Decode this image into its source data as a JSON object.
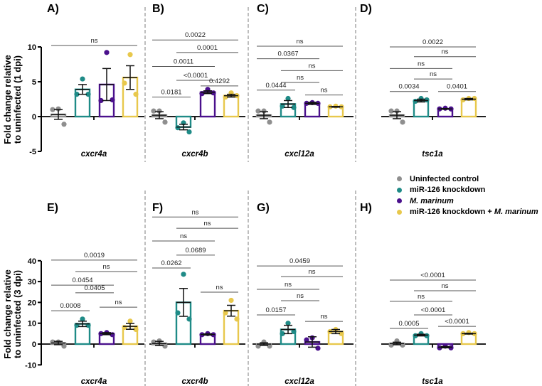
{
  "colors": {
    "uninfected": "#8f8f8f",
    "knockdown": "#1f8b87",
    "marinum": "#4a108c",
    "combo": "#e8c84c"
  },
  "legend": {
    "items": [
      {
        "label": "Uninfected control"
      },
      {
        "label": "miR-126 knockdown"
      },
      {
        "label": "M. marinum"
      },
      {
        "label_plain": "miR-126 knockdown + ",
        "label_italic": "M. marinum"
      }
    ]
  },
  "ylabels": {
    "top": [
      "Fold change relative",
      "to uninfected (1 dpi)"
    ],
    "bottom": [
      "Fold change relative",
      "to uninfected (3 dpi)"
    ]
  },
  "chart_data": [
    {
      "panel": "A)",
      "type": "bar",
      "gene": "cxcr4a",
      "row": "1 dpi",
      "yticks": [
        10,
        5,
        0,
        -5
      ],
      "ylim": [
        -5,
        10
      ],
      "groups": [
        {
          "mean": 0.3,
          "sem": 0.7,
          "points": [
            1.1,
            1.0,
            -1.1
          ]
        },
        {
          "mean": 3.9,
          "sem": 0.7,
          "points": [
            5.4,
            3.2,
            3.2
          ]
        },
        {
          "mean": 4.6,
          "sem": 2.3,
          "points": [
            9.2,
            2.3,
            2.4
          ]
        },
        {
          "mean": 5.6,
          "sem": 1.7,
          "points": [
            8.9,
            4.8,
            3.2
          ]
        }
      ],
      "brackets": [
        {
          "from": 0,
          "to": 3,
          "y": 10.2,
          "label": "ns"
        }
      ]
    },
    {
      "panel": "B)",
      "type": "bar",
      "gene": "cxcr4b",
      "row": "1 dpi",
      "ylim": [
        -5,
        10
      ],
      "groups": [
        {
          "mean": 0.2,
          "sem": 0.5,
          "points": [
            0.8,
            0.8,
            -0.8
          ]
        },
        {
          "mean": -1.5,
          "sem": 0.4,
          "points": [
            -0.9,
            -1.6,
            -2.2
          ]
        },
        {
          "mean": 3.5,
          "sem": 0.2,
          "points": [
            3.9,
            3.3,
            3.4
          ]
        },
        {
          "mean": 3.0,
          "sem": 0.2,
          "points": [
            3.4,
            2.8,
            3.0
          ]
        }
      ],
      "brackets": [
        {
          "from": 0,
          "to": 3,
          "y": 11.0,
          "label": "0.0022"
        },
        {
          "from": 1,
          "to": 3,
          "y": 9.2,
          "label": "0.0001"
        },
        {
          "from": 0,
          "to": 2,
          "y": 7.2,
          "label": "0.0011"
        },
        {
          "from": 1,
          "to": 2,
          "y": 5.2,
          "label": "<0.0001"
        },
        {
          "from": 2,
          "to": 3,
          "y": 4.4,
          "label": "0.4292"
        },
        {
          "from": 0,
          "to": 1,
          "y": 2.8,
          "label": "0.0181"
        }
      ]
    },
    {
      "panel": "C)",
      "type": "bar",
      "gene": "cxcl12a",
      "row": "1 dpi",
      "ylim": [
        -5,
        10
      ],
      "groups": [
        {
          "mean": 0.2,
          "sem": 0.5,
          "points": [
            0.8,
            0.8,
            -0.8
          ]
        },
        {
          "mean": 1.8,
          "sem": 0.5,
          "points": [
            2.6,
            1.5,
            1.3
          ]
        },
        {
          "mean": 1.9,
          "sem": 0.15,
          "points": [
            2.0,
            1.9,
            1.9
          ]
        },
        {
          "mean": 1.4,
          "sem": 0.05,
          "points": [
            1.5,
            1.4,
            1.4
          ]
        }
      ],
      "brackets": [
        {
          "from": 0,
          "to": 3,
          "y": 10.1,
          "label": "ns"
        },
        {
          "from": 0,
          "to": 2,
          "y": 8.3,
          "label": "0.0367"
        },
        {
          "from": 1,
          "to": 3,
          "y": 6.6,
          "label": "ns"
        },
        {
          "from": 1,
          "to": 2,
          "y": 4.9,
          "label": "ns"
        },
        {
          "from": 0,
          "to": 1,
          "y": 3.8,
          "label": "0.0444"
        },
        {
          "from": 2,
          "to": 3,
          "y": 3.1,
          "label": "ns"
        }
      ]
    },
    {
      "panel": "D)",
      "type": "bar",
      "gene": "tsc1a",
      "row": "1 dpi",
      "ylim": [
        -5,
        10
      ],
      "groups": [
        {
          "mean": 0.2,
          "sem": 0.5,
          "points": [
            0.8,
            0.8,
            -0.8
          ]
        },
        {
          "mean": 2.3,
          "sem": 0.2,
          "points": [
            2.6,
            2.2,
            2.4
          ]
        },
        {
          "mean": 1.1,
          "sem": 0.05,
          "points": [
            1.2,
            1.1,
            1.1
          ]
        },
        {
          "mean": 2.5,
          "sem": 0.1,
          "points": [
            2.6,
            2.4,
            2.6
          ]
        }
      ],
      "brackets": [
        {
          "from": 0,
          "to": 3,
          "y": 10.0,
          "label": "0.0022"
        },
        {
          "from": 1,
          "to": 3,
          "y": 8.6,
          "label": "ns"
        },
        {
          "from": 0,
          "to": 2,
          "y": 6.9,
          "label": "ns"
        },
        {
          "from": 1,
          "to": 2,
          "y": 5.4,
          "label": "ns"
        },
        {
          "from": 0,
          "to": 1,
          "y": 3.6,
          "label": "0.0034"
        },
        {
          "from": 2,
          "to": 3,
          "y": 3.6,
          "label": "0.0401"
        }
      ]
    },
    {
      "panel": "E)",
      "type": "bar",
      "gene": "cxcr4a",
      "row": "3 dpi",
      "yticks": [
        40,
        30,
        20,
        10,
        0,
        -10
      ],
      "ylim": [
        -10,
        40
      ],
      "groups": [
        {
          "mean": 0.5,
          "sem": 0.8,
          "points": [
            1.0,
            1.0,
            -1.0
          ]
        },
        {
          "mean": 9.7,
          "sem": 1.3,
          "points": [
            12,
            9,
            9
          ]
        },
        {
          "mean": 5.0,
          "sem": 0.5,
          "points": [
            5.5,
            5,
            4.5
          ]
        },
        {
          "mean": 8.5,
          "sem": 1.4,
          "points": [
            11,
            8,
            7
          ]
        }
      ],
      "brackets": [
        {
          "from": 0,
          "to": 3,
          "y": 40.3,
          "label": "0.0019"
        },
        {
          "from": 1,
          "to": 3,
          "y": 34.8,
          "label": "ns"
        },
        {
          "from": 0,
          "to": 2,
          "y": 28.3,
          "label": "0.0454"
        },
        {
          "from": 1,
          "to": 2,
          "y": 24.6,
          "label": "0.0405"
        },
        {
          "from": 2,
          "to": 3,
          "y": 17.7,
          "label": "ns"
        },
        {
          "from": 0,
          "to": 1,
          "y": 16.0,
          "label": "0.0008"
        }
      ]
    },
    {
      "panel": "F)",
      "type": "bar",
      "gene": "cxcr4b",
      "row": "3 dpi",
      "ylim": [
        -10,
        40
      ],
      "groups": [
        {
          "mean": 0.3,
          "sem": 1.0,
          "points": [
            1.5,
            1.0,
            -1.0
          ]
        },
        {
          "mean": 20.0,
          "sem": 6.7,
          "points": [
            33.5,
            15,
            12
          ]
        },
        {
          "mean": 4.6,
          "sem": 0.3,
          "points": [
            5,
            4.5,
            4.5
          ]
        },
        {
          "mean": 16.0,
          "sem": 2.6,
          "points": [
            21,
            15,
            12
          ]
        }
      ],
      "brackets": [
        {
          "from": 0,
          "to": 3,
          "y": 61.0,
          "label": "ns"
        },
        {
          "from": 1,
          "to": 3,
          "y": 55.6,
          "label": "ns"
        },
        {
          "from": 0,
          "to": 2,
          "y": 49.5,
          "label": "ns"
        },
        {
          "from": 1,
          "to": 2,
          "y": 42.7,
          "label": "0.0689"
        },
        {
          "from": 0,
          "to": 1,
          "y": 36.5,
          "label": "0.0262"
        },
        {
          "from": 2,
          "to": 3,
          "y": 24.9,
          "label": "ns"
        }
      ]
    },
    {
      "panel": "G)",
      "type": "bar",
      "gene": "cxcl12a",
      "row": "3 dpi",
      "ylim": [
        -10,
        40
      ],
      "groups": [
        {
          "mean": 0.0,
          "sem": 0.6,
          "points": [
            1.0,
            -1.0,
            -1.0
          ]
        },
        {
          "mean": 7.0,
          "sem": 2.0,
          "points": [
            10,
            5,
            6
          ]
        },
        {
          "mean": 1.0,
          "sem": 2.5,
          "points": [
            3,
            2,
            -2
          ]
        },
        {
          "mean": 6.0,
          "sem": 1.0,
          "points": [
            7,
            6,
            5
          ]
        }
      ],
      "brackets": [
        {
          "from": 0,
          "to": 3,
          "y": 37.5,
          "label": "0.0459"
        },
        {
          "from": 1,
          "to": 3,
          "y": 32.4,
          "label": "ns"
        },
        {
          "from": 0,
          "to": 2,
          "y": 26.3,
          "label": "ns"
        },
        {
          "from": 1,
          "to": 2,
          "y": 20.8,
          "label": "ns"
        },
        {
          "from": 0,
          "to": 1,
          "y": 14.0,
          "label": "0.0157"
        },
        {
          "from": 2,
          "to": 3,
          "y": 10.9,
          "label": "ns"
        }
      ]
    },
    {
      "panel": "H)",
      "type": "bar",
      "gene": "tsc1a",
      "row": "3 dpi",
      "ylim": [
        -10,
        40
      ],
      "groups": [
        {
          "mean": 0.3,
          "sem": 0.6,
          "points": [
            1.5,
            -0.5,
            -0.5
          ]
        },
        {
          "mean": 4.3,
          "sem": 0.4,
          "points": [
            5,
            4,
            4
          ]
        },
        {
          "mean": -1.5,
          "sem": 0.3,
          "points": [
            -1,
            -1.8,
            -1.8
          ]
        },
        {
          "mean": 5.0,
          "sem": 0.2,
          "points": [
            5.5,
            5,
            5
          ]
        }
      ],
      "brackets": [
        {
          "from": 0,
          "to": 3,
          "y": 30.7,
          "label": "<0.0001"
        },
        {
          "from": 1,
          "to": 3,
          "y": 25.6,
          "label": "ns"
        },
        {
          "from": 0,
          "to": 2,
          "y": 20.5,
          "label": "ns"
        },
        {
          "from": 1,
          "to": 2,
          "y": 14.0,
          "label": "<0.0001"
        },
        {
          "from": 2,
          "to": 3,
          "y": 8.5,
          "label": "<0.0001"
        },
        {
          "from": 0,
          "to": 1,
          "y": 7.5,
          "label": "0.0005"
        }
      ]
    }
  ]
}
